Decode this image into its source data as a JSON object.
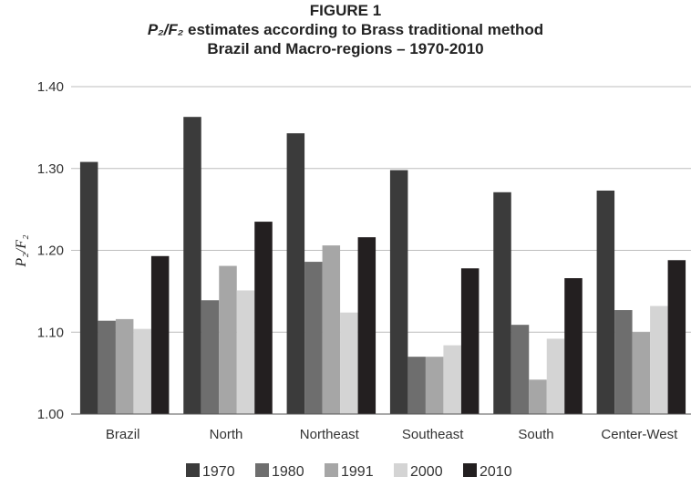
{
  "chart_data": {
    "type": "bar",
    "title": "FIGURE 1",
    "subtitle_italic": "P₂/F₂",
    "subtitle_rest": " estimates according to Brass traditional method",
    "subtitle2": "Brazil and Macro-regions – 1970-2010",
    "xlabel": "",
    "ylabel": "P₂/F₂",
    "ylim": [
      1.0,
      1.4
    ],
    "yticks": [
      "1.00",
      "1.10",
      "1.20",
      "1.30",
      "1.40"
    ],
    "grid": true,
    "legend_placement": "bottom",
    "categories": [
      "Brazil",
      "North",
      "Northeast",
      "Southeast",
      "South",
      "Center-West"
    ],
    "series": [
      {
        "name": "1970",
        "color": "#3b3b3b",
        "values": [
          1.308,
          1.363,
          1.343,
          1.298,
          1.271,
          1.273
        ]
      },
      {
        "name": "1980",
        "color": "#6e6e6e",
        "values": [
          1.114,
          1.139,
          1.186,
          1.07,
          1.109,
          1.127
        ]
      },
      {
        "name": "1991",
        "color": "#a6a6a6",
        "values": [
          1.116,
          1.181,
          1.206,
          1.07,
          1.042,
          1.1
        ]
      },
      {
        "name": "2000",
        "color": "#d4d4d4",
        "values": [
          1.104,
          1.151,
          1.124,
          1.084,
          1.092,
          1.132
        ]
      },
      {
        "name": "2010",
        "color": "#231f20",
        "values": [
          1.193,
          1.235,
          1.216,
          1.178,
          1.166,
          1.188
        ]
      }
    ]
  }
}
